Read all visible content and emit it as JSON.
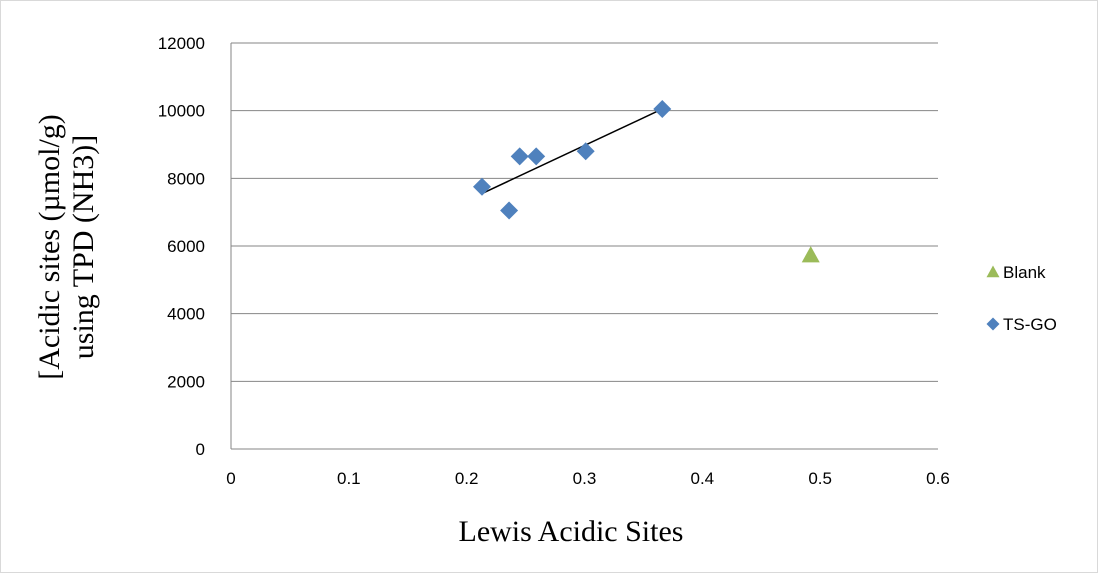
{
  "chart_data": {
    "type": "scatter",
    "xlabel": "Lewis Acidic Sites",
    "ylabel_line1": "[Acidic sites (µmol/g)",
    "ylabel_line2": "using TPD (NH3)]",
    "xlim": [
      0,
      0.6
    ],
    "ylim": [
      0,
      12000
    ],
    "x_ticks": [
      0,
      0.1,
      0.2,
      0.3,
      0.4,
      0.5,
      0.6
    ],
    "x_tick_labels": [
      "0",
      "0.1",
      "0.2",
      "0.3",
      "0.4",
      "0.5",
      "0.6"
    ],
    "y_ticks": [
      0,
      2000,
      4000,
      6000,
      8000,
      10000,
      12000
    ],
    "y_tick_labels": [
      "0",
      "2000",
      "4000",
      "6000",
      "8000",
      "10000",
      "12000"
    ],
    "grid": "horizontal",
    "legend_position": "right",
    "series": [
      {
        "name": "Blank",
        "marker": "triangle",
        "color": "#9bbb59",
        "points": [
          {
            "x": 0.492,
            "y": 5730
          }
        ]
      },
      {
        "name": "TS-GO",
        "marker": "diamond",
        "color": "#4f81bd",
        "points": [
          {
            "x": 0.213,
            "y": 7750
          },
          {
            "x": 0.236,
            "y": 7050
          },
          {
            "x": 0.245,
            "y": 8650
          },
          {
            "x": 0.259,
            "y": 8650
          },
          {
            "x": 0.301,
            "y": 8800
          },
          {
            "x": 0.366,
            "y": 10050
          }
        ]
      }
    ],
    "trendline": {
      "series": "TS-GO",
      "color": "#000000",
      "x_start": 0.213,
      "y_start": 7550,
      "x_end": 0.366,
      "y_end": 10050
    }
  }
}
